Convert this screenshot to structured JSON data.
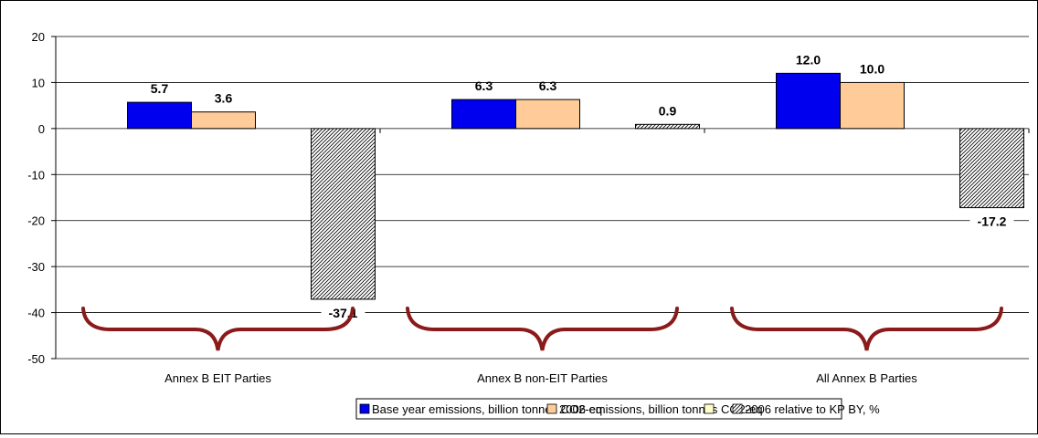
{
  "chart_data": {
    "type": "bar",
    "categories": [
      "Annex B EIT Parties",
      "Annex B non-EIT Parties",
      "All Annex B Parties"
    ],
    "series": [
      {
        "name": "Base year emissions, billion tonnes CO2-eq",
        "values": [
          5.7,
          6.3,
          12.0
        ],
        "labels": [
          "5.7",
          "6.3",
          "12.0"
        ],
        "color": "#0000ee",
        "pattern": "solid"
      },
      {
        "name": "2006 emissions, billion tonnes CO2-eq",
        "values": [
          3.6,
          6.3,
          10.0
        ],
        "labels": [
          "3.6",
          "6.3",
          "10.0"
        ],
        "color": "#ffcc99",
        "pattern": "solid"
      },
      {
        "name": "2006 relative to KP BY, %",
        "values": [
          -37.1,
          0.9,
          -17.2
        ],
        "labels": [
          "-37.1",
          "0.9",
          "-17.2"
        ],
        "color": "#ffffff",
        "pattern": "hatch"
      }
    ],
    "ylim": [
      -50,
      20
    ],
    "yticks": [
      "20",
      "10",
      "0",
      "-10",
      "-20",
      "-30",
      "-40",
      "-50"
    ],
    "grid": true,
    "legend_position": "bottom",
    "brace_color": "#8b1a1a"
  }
}
